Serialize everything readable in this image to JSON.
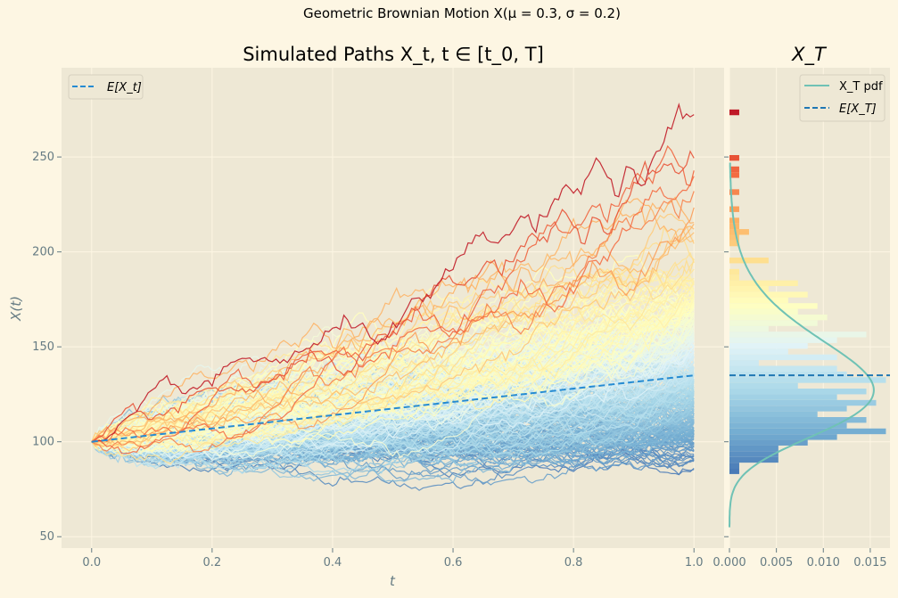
{
  "figure": {
    "suptitle": "Geometric Brownian Motion X(μ = 0.3, σ = 0.2)",
    "background": "#fdf6e3",
    "axes_background": "#eee8d5"
  },
  "chart_data": [
    {
      "type": "line",
      "title": "Simulated Paths X_t, t ∈ [t_0, T]",
      "xlabel": "t",
      "ylabel": "X(t)",
      "xlim": [
        -0.05,
        1.05
      ],
      "ylim": [
        44,
        297
      ],
      "xticks": [
        "0.0",
        "0.2",
        "0.4",
        "0.6",
        "0.8",
        "1.0"
      ],
      "yticks": [
        "50",
        "100",
        "150",
        "200",
        "250"
      ],
      "grid": true,
      "legend": {
        "placement": "top-left",
        "entries": [
          "E[X_t]"
        ]
      },
      "process": {
        "mu": 0.3,
        "sigma": 0.2,
        "x0": 100,
        "t0": 0,
        "T": 1
      },
      "expected_path": {
        "t": [
          0,
          1
        ],
        "values": [
          100,
          134.99
        ],
        "style": "dashed",
        "color": "#268bd2"
      },
      "path_colormap": "RdYlBu_r",
      "path_range_at_T": [
        60,
        285
      ]
    },
    {
      "type": "bar",
      "orientation": "horizontal",
      "title": "X_T",
      "xlim": [
        0,
        0.0171
      ],
      "xticks": [
        "0.000",
        "0.005",
        "0.010",
        "0.015"
      ],
      "grid": true,
      "legend": {
        "placement": "top-right",
        "entries": [
          "X_T pdf",
          "E[X_T]"
        ]
      },
      "pdf": {
        "distribution": "lognormal",
        "color": "#6fc2b5",
        "mode": 127,
        "peak_density": 0.0154
      },
      "expected_value": {
        "value": 134.99,
        "style": "dashed",
        "color": "#1f77b4"
      }
    }
  ]
}
